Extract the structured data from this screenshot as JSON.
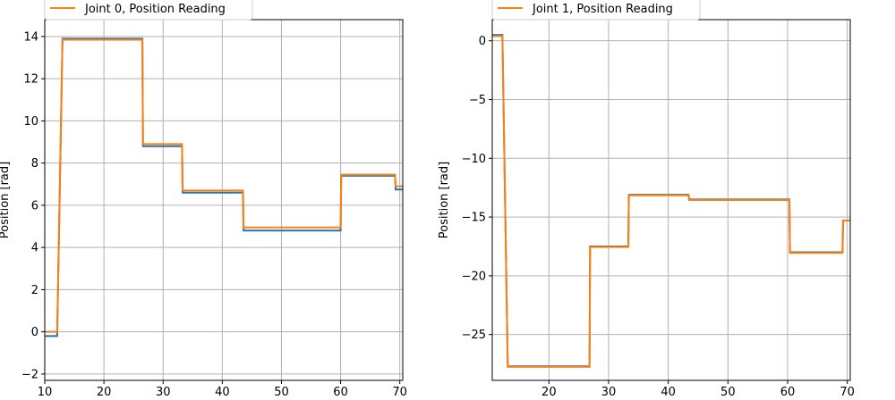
{
  "chart_data": [
    {
      "type": "line",
      "ylabel": "Position [rad]",
      "xlabel": "",
      "xlim": [
        10,
        70.5
      ],
      "ylim": [
        -2.3,
        14.8
      ],
      "xticks": [
        10,
        20,
        30,
        40,
        50,
        60,
        70
      ],
      "yticks": [
        -2,
        0,
        2,
        4,
        6,
        8,
        10,
        12,
        14
      ],
      "ytick_labels": [
        "−2",
        "0",
        "2",
        "4",
        "6",
        "8",
        "10",
        "12",
        "14"
      ],
      "grid": true,
      "legend": {
        "placement": "top-left",
        "entries": [
          {
            "label": "Joint 0, Position Reading",
            "color": "#ff7f0e"
          }
        ]
      },
      "series": [
        {
          "color": "#1f77b4",
          "x": [
            10,
            12,
            12.1,
            13,
            26.5,
            26.6,
            33.2,
            33.3,
            43.5,
            43.6,
            60,
            60.1,
            69.2,
            69.3,
            70.5
          ],
          "y": [
            -0.2,
            -0.2,
            -0.2,
            13.9,
            13.9,
            8.8,
            8.8,
            6.6,
            6.6,
            4.8,
            4.8,
            7.4,
            7.4,
            6.75,
            6.75
          ]
        },
        {
          "name": "Joint 0, Position Reading",
          "color": "#ff7f0e",
          "x": [
            10,
            12,
            12.1,
            13,
            26.5,
            26.6,
            33.2,
            33.3,
            43.5,
            43.6,
            60,
            60.1,
            69.2,
            69.3,
            70.5
          ],
          "y": [
            0,
            0,
            0,
            13.85,
            13.85,
            8.9,
            8.9,
            6.7,
            6.7,
            4.95,
            4.95,
            7.45,
            7.45,
            6.9,
            6.9
          ]
        }
      ]
    },
    {
      "type": "line",
      "ylabel": "Position [rad]",
      "xlabel": "",
      "xlim": [
        10.5,
        70.5
      ],
      "ylim": [
        -28.9,
        1.8
      ],
      "xticks": [
        20,
        30,
        40,
        50,
        60,
        70
      ],
      "yticks": [
        0,
        -5,
        -10,
        -15,
        -20,
        -25
      ],
      "ytick_labels": [
        "0",
        "−5",
        "−10",
        "−15",
        "−20",
        "−25"
      ],
      "grid": true,
      "legend": {
        "placement": "top-left",
        "entries": [
          {
            "label": "Joint 1, Position Reading",
            "color": "#ff7f0e"
          }
        ]
      },
      "series": [
        {
          "color": "#1f77b4",
          "x": [
            10.5,
            12,
            12.2,
            13.1,
            26.8,
            26.9,
            33.3,
            33.4,
            43.4,
            43.5,
            60.3,
            60.4,
            69.2,
            69.3,
            70.5
          ],
          "y": [
            0.5,
            0.5,
            0.5,
            -27.7,
            -27.7,
            -17.5,
            -17.5,
            -13.1,
            -13.1,
            -13.5,
            -13.5,
            -18.0,
            -18.0,
            -15.3,
            -15.3
          ]
        },
        {
          "name": "Joint 1, Position Reading",
          "color": "#ff7f0e",
          "x": [
            10.5,
            12,
            12.2,
            13.1,
            26.8,
            26.9,
            33.3,
            33.4,
            43.4,
            43.5,
            60.3,
            60.4,
            69.2,
            69.3,
            70.5
          ],
          "y": [
            0.4,
            0.4,
            0.4,
            -27.75,
            -27.75,
            -17.55,
            -17.55,
            -13.15,
            -13.15,
            -13.55,
            -13.55,
            -18.05,
            -18.05,
            -15.3,
            -15.3
          ]
        }
      ]
    }
  ]
}
